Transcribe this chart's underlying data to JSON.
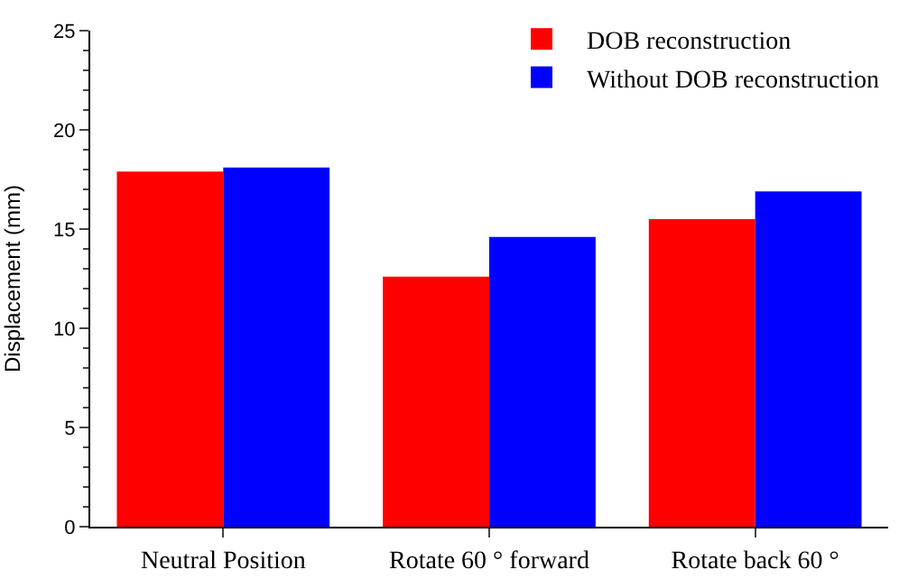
{
  "chart_data": {
    "type": "bar",
    "ylabel": "Displacement (mm)",
    "categories": [
      "Neutral Position",
      "Rotate 60 ° forward",
      "Rotate back 60 °"
    ],
    "series": [
      {
        "name": "DOB reconstruction",
        "color": "#ff0000",
        "values": [
          17.9,
          12.6,
          15.5
        ]
      },
      {
        "name": "Without DOB reconstruction",
        "color": "#0000ff",
        "values": [
          18.1,
          14.6,
          16.9
        ]
      }
    ],
    "ylim": [
      0,
      25
    ],
    "yticks": [
      0,
      5,
      10,
      15,
      20,
      25
    ],
    "legend": "top right"
  }
}
